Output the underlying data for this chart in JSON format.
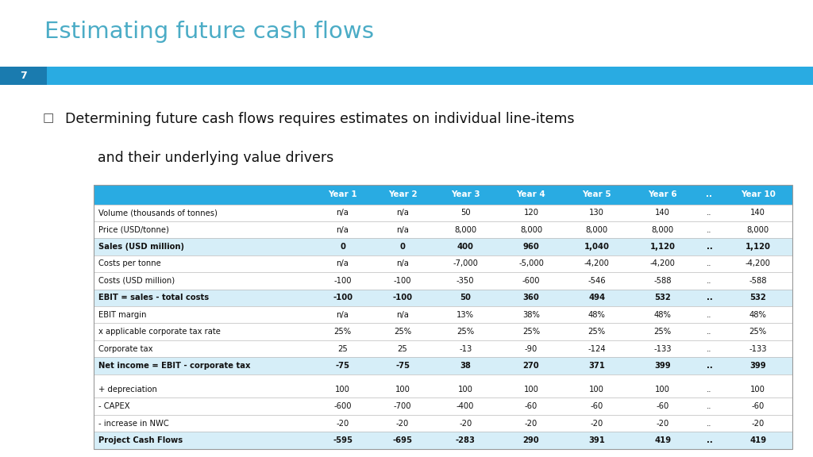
{
  "title": "Estimating future cash flows",
  "title_color": "#4BACC6",
  "bullet_text_line1": "Determining future cash flows requires estimates on individual line-items",
  "bullet_text_line2": "and their underlying value drivers",
  "slide_number": "7",
  "header_bg_color": "#29ABE2",
  "bar_left_color": "#1A7BAF",
  "bar_right_color": "#29ABE2",
  "header_text_color": "#FFFFFF",
  "alt_row_color": "#D6EEF8",
  "normal_row_color": "#FFFFFF",
  "background_color": "#FFFFFF",
  "columns": [
    "",
    "Year 1",
    "Year 2",
    "Year 3",
    "Year 4",
    "Year 5",
    "Year 6",
    "..",
    "Year 10"
  ],
  "col_widths": [
    3.0,
    0.82,
    0.82,
    0.9,
    0.9,
    0.9,
    0.9,
    0.38,
    0.95
  ],
  "rows": [
    {
      "label": "Volume (thousands of tonnes)",
      "bold": false,
      "stripe": false,
      "values": [
        "n/a",
        "n/a",
        "50",
        "120",
        "130",
        "140",
        "..",
        "140"
      ]
    },
    {
      "label": "Price (USD/tonne)",
      "bold": false,
      "stripe": false,
      "values": [
        "n/a",
        "n/a",
        "8,000",
        "8,000",
        "8,000",
        "8,000",
        "..",
        "8,000"
      ]
    },
    {
      "label": "Sales (USD million)",
      "bold": true,
      "stripe": true,
      "values": [
        "0",
        "0",
        "400",
        "960",
        "1,040",
        "1,120",
        "..",
        "1,120"
      ]
    },
    {
      "label": "Costs per tonne",
      "bold": false,
      "stripe": false,
      "values": [
        "n/a",
        "n/a",
        "-7,000",
        "-5,000",
        "-4,200",
        "-4,200",
        "..",
        "-4,200"
      ]
    },
    {
      "label": "Costs (USD million)",
      "bold": false,
      "stripe": false,
      "values": [
        "-100",
        "-100",
        "-350",
        "-600",
        "-546",
        "-588",
        "..",
        "-588"
      ]
    },
    {
      "label": "EBIT = sales - total costs",
      "bold": true,
      "stripe": true,
      "values": [
        "-100",
        "-100",
        "50",
        "360",
        "494",
        "532",
        "..",
        "532"
      ]
    },
    {
      "label": "EBIT margin",
      "bold": false,
      "stripe": false,
      "values": [
        "n/a",
        "n/a",
        "13%",
        "38%",
        "48%",
        "48%",
        "..",
        "48%"
      ]
    },
    {
      "label": "x applicable corporate tax rate",
      "bold": false,
      "stripe": false,
      "values": [
        "25%",
        "25%",
        "25%",
        "25%",
        "25%",
        "25%",
        "..",
        "25%"
      ]
    },
    {
      "label": "Corporate tax",
      "bold": false,
      "stripe": false,
      "values": [
        "25",
        "25",
        "-13",
        "-90",
        "-124",
        "-133",
        "..",
        "-133"
      ]
    },
    {
      "label": "Net income = EBIT - corporate tax",
      "bold": true,
      "stripe": true,
      "values": [
        "-75",
        "-75",
        "38",
        "270",
        "371",
        "399",
        "..",
        "399"
      ]
    },
    {
      "label": "+ depreciation",
      "bold": false,
      "stripe": false,
      "values": [
        "100",
        "100",
        "100",
        "100",
        "100",
        "100",
        "..",
        "100"
      ]
    },
    {
      "label": "- CAPEX",
      "bold": false,
      "stripe": false,
      "values": [
        "-600",
        "-700",
        "-400",
        "-60",
        "-60",
        "-60",
        "..",
        "-60"
      ]
    },
    {
      "label": "- increase in NWC",
      "bold": false,
      "stripe": false,
      "values": [
        "-20",
        "-20",
        "-20",
        "-20",
        "-20",
        "-20",
        "..",
        "-20"
      ]
    },
    {
      "label": "Project Cash Flows",
      "bold": true,
      "stripe": true,
      "values": [
        "-595",
        "-695",
        "-283",
        "290",
        "391",
        "419",
        "..",
        "419"
      ]
    }
  ],
  "separator_before": [
    10
  ]
}
